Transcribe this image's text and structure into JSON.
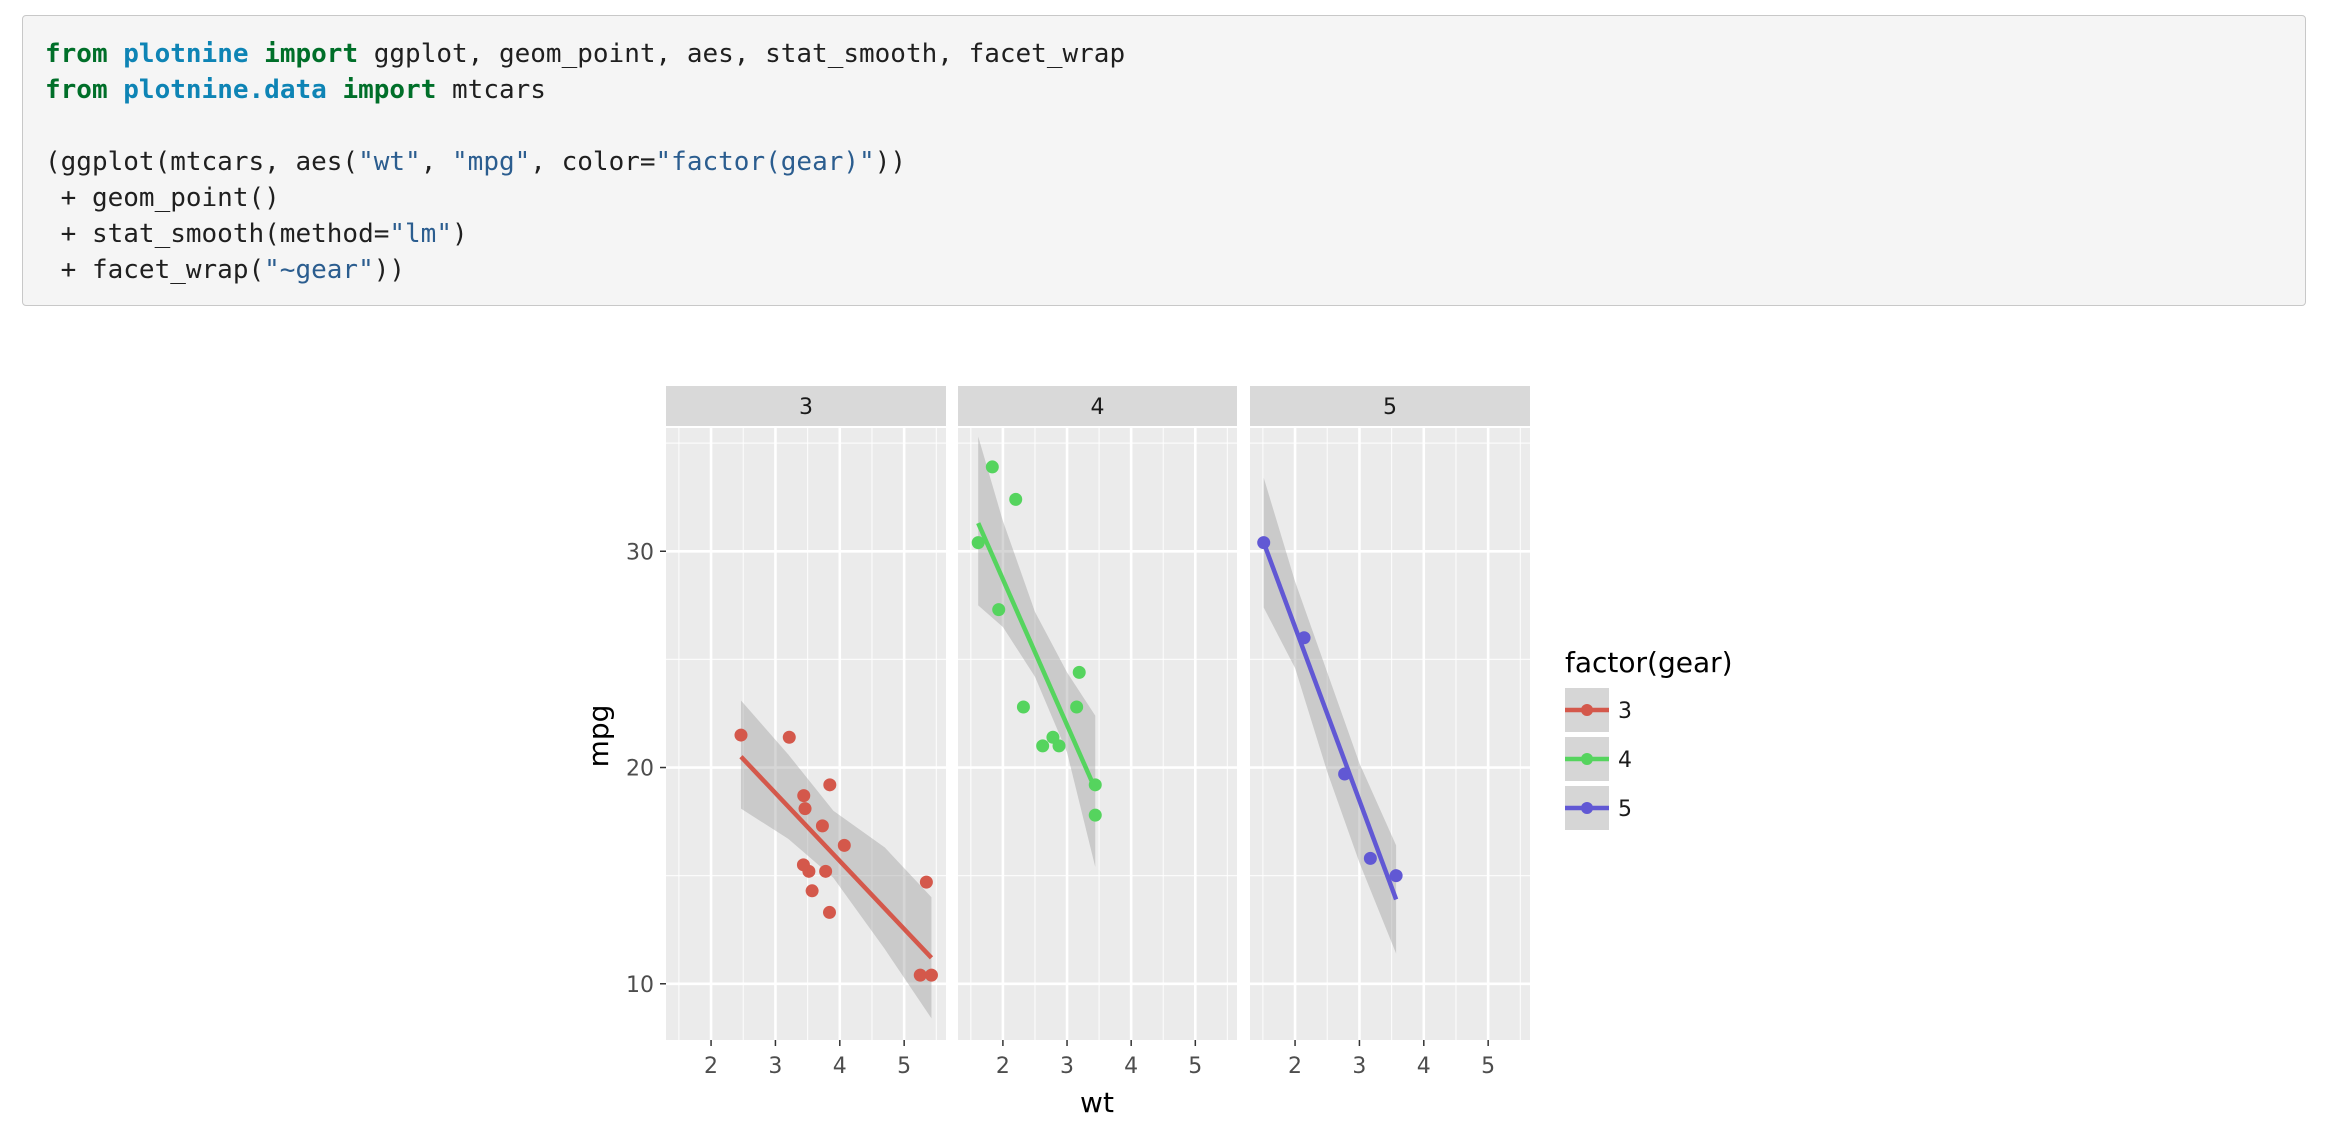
{
  "code": {
    "lines": [
      [
        {
          "t": "from",
          "c": "kw"
        },
        {
          "t": " ",
          "c": "plain"
        },
        {
          "t": "plotnine",
          "c": "mod"
        },
        {
          "t": " ",
          "c": "plain"
        },
        {
          "t": "import",
          "c": "kw"
        },
        {
          "t": " ggplot, geom_point, aes, stat_smooth, facet_wrap",
          "c": "plain"
        }
      ],
      [
        {
          "t": "from",
          "c": "kw"
        },
        {
          "t": " ",
          "c": "plain"
        },
        {
          "t": "plotnine.data",
          "c": "mod"
        },
        {
          "t": " ",
          "c": "plain"
        },
        {
          "t": "import",
          "c": "kw"
        },
        {
          "t": " mtcars",
          "c": "plain"
        }
      ],
      [],
      [
        {
          "t": "(ggplot(mtcars, aes(",
          "c": "plain"
        },
        {
          "t": "\"wt\"",
          "c": "str"
        },
        {
          "t": ", ",
          "c": "plain"
        },
        {
          "t": "\"mpg\"",
          "c": "str"
        },
        {
          "t": ", color=",
          "c": "plain"
        },
        {
          "t": "\"factor(gear)\"",
          "c": "str"
        },
        {
          "t": "))",
          "c": "plain"
        }
      ],
      [
        {
          "t": " + geom_point()",
          "c": "plain"
        }
      ],
      [
        {
          "t": " + stat_smooth(method=",
          "c": "plain"
        },
        {
          "t": "\"lm\"",
          "c": "str"
        },
        {
          "t": ")",
          "c": "plain"
        }
      ],
      [
        {
          "t": " + facet_wrap(",
          "c": "plain"
        },
        {
          "t": "\"~gear\"",
          "c": "str"
        },
        {
          "t": "))",
          "c": "plain"
        }
      ]
    ]
  },
  "chart_data": {
    "type": "scatter",
    "title": "",
    "xlabel": "wt",
    "ylabel": "mpg",
    "xlim": [
      1.3,
      5.65
    ],
    "ylim": [
      7.4,
      35.7
    ],
    "x_ticks": [
      2,
      3,
      4,
      5
    ],
    "y_ticks": [
      10,
      20,
      30
    ],
    "grid": true,
    "legend": {
      "title": "factor(gear)",
      "position": "right",
      "entries": [
        "3",
        "4",
        "5"
      ]
    },
    "colors": {
      "3": "#d4584b",
      "4": "#55d45e",
      "5": "#6158d4",
      "panel_bg": "#ebebeb",
      "strip_bg": "#d9d9d9",
      "band": "#999999"
    },
    "facets": [
      {
        "label": "3",
        "points": [
          [
            2.465,
            21.5
          ],
          [
            3.215,
            21.4
          ],
          [
            3.44,
            18.7
          ],
          [
            3.46,
            18.1
          ],
          [
            3.57,
            14.3
          ],
          [
            3.52,
            15.2
          ],
          [
            3.435,
            15.5
          ],
          [
            3.84,
            13.3
          ],
          [
            3.845,
            19.2
          ],
          [
            4.07,
            16.4
          ],
          [
            3.73,
            17.3
          ],
          [
            3.78,
            15.2
          ],
          [
            5.25,
            10.4
          ],
          [
            5.424,
            10.4
          ],
          [
            5.345,
            14.7
          ]
        ],
        "fit": [
          [
            2.465,
            20.5
          ],
          [
            5.424,
            11.2
          ]
        ],
        "band_upper": [
          [
            2.465,
            23.1
          ],
          [
            3.2,
            20.6
          ],
          [
            3.9,
            18.0
          ],
          [
            4.7,
            16.3
          ],
          [
            5.424,
            14.0
          ]
        ],
        "band_lower": [
          [
            2.465,
            18.1
          ],
          [
            3.2,
            16.7
          ],
          [
            3.9,
            14.9
          ],
          [
            4.7,
            11.6
          ],
          [
            5.424,
            8.4
          ]
        ]
      },
      {
        "label": "4",
        "points": [
          [
            1.615,
            30.4
          ],
          [
            1.835,
            33.9
          ],
          [
            2.2,
            32.4
          ],
          [
            1.935,
            27.3
          ],
          [
            2.32,
            22.8
          ],
          [
            2.62,
            21.0
          ],
          [
            2.875,
            21.0
          ],
          [
            2.78,
            21.4
          ],
          [
            3.19,
            24.4
          ],
          [
            3.15,
            22.8
          ],
          [
            3.44,
            19.2
          ],
          [
            3.44,
            17.8
          ]
        ],
        "fit": [
          [
            1.615,
            31.3
          ],
          [
            3.44,
            19.0
          ]
        ],
        "band_upper": [
          [
            1.615,
            35.3
          ],
          [
            2.0,
            31.4
          ],
          [
            2.5,
            27.2
          ],
          [
            3.0,
            24.4
          ],
          [
            3.44,
            22.4
          ]
        ],
        "band_lower": [
          [
            1.615,
            27.5
          ],
          [
            2.0,
            26.5
          ],
          [
            2.5,
            24.2
          ],
          [
            3.0,
            20.7
          ],
          [
            3.44,
            15.4
          ]
        ]
      },
      {
        "label": "5",
        "points": [
          [
            1.513,
            30.4
          ],
          [
            2.14,
            26.0
          ],
          [
            2.77,
            19.7
          ],
          [
            3.17,
            15.8
          ],
          [
            3.57,
            15.0
          ]
        ],
        "fit": [
          [
            1.513,
            30.4
          ],
          [
            3.57,
            13.9
          ]
        ],
        "band_upper": [
          [
            1.513,
            33.4
          ],
          [
            2.0,
            28.6
          ],
          [
            2.5,
            24.4
          ],
          [
            3.0,
            20.2
          ],
          [
            3.57,
            16.4
          ]
        ],
        "band_lower": [
          [
            1.513,
            27.4
          ],
          [
            2.0,
            24.6
          ],
          [
            2.5,
            19.8
          ],
          [
            3.0,
            15.6
          ],
          [
            3.57,
            11.4
          ]
        ]
      }
    ]
  }
}
